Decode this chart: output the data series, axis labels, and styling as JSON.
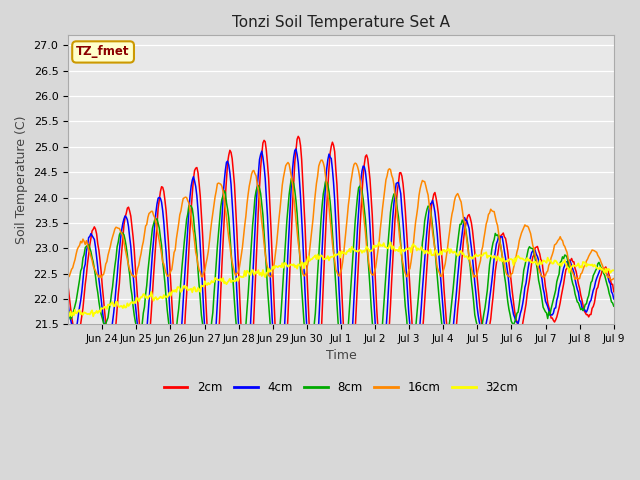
{
  "title": "Tonzi Soil Temperature Set A",
  "xlabel": "Time",
  "ylabel": "Soil Temperature (C)",
  "ylim": [
    21.5,
    27.2
  ],
  "bg_color": "#d8d8d8",
  "plot_bg_color": "#e8e8e8",
  "legend_label": "TZ_fmet",
  "legend_bg": "#ffffcc",
  "legend_border": "#cc9900",
  "series_colors": [
    "#ff0000",
    "#0000ff",
    "#00aa00",
    "#ff8800",
    "#ffff00"
  ],
  "series_labels": [
    "2cm",
    "4cm",
    "8cm",
    "16cm",
    "32cm"
  ],
  "tick_labels": [
    "Jun 24",
    "Jun 25",
    "Jun 26",
    "Jun 27",
    "Jun 28",
    "Jun 29",
    "Jun 30",
    "Jul 1",
    "Jul 2",
    "Jul 3",
    "Jul 4",
    "Jul 5",
    "Jul 6",
    "Jul 7",
    "Jul 8",
    "Jul 9"
  ],
  "yticks": [
    21.5,
    22.0,
    22.5,
    23.0,
    23.5,
    24.0,
    24.5,
    25.0,
    25.5,
    26.0,
    26.5,
    27.0
  ],
  "n_points": 480,
  "total_days": 16.0
}
